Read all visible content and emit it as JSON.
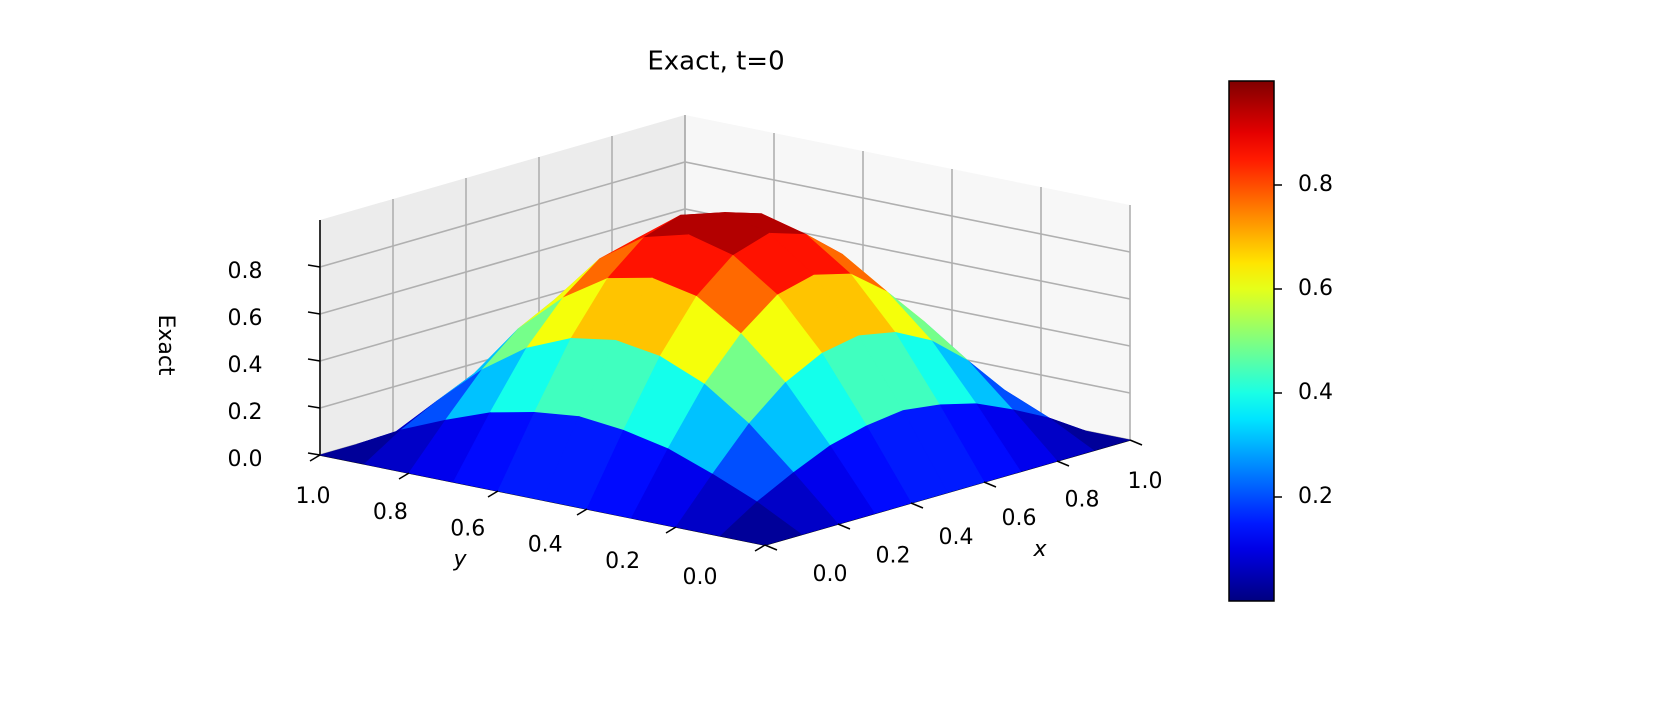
{
  "chart_data": {
    "type": "surface",
    "title": "Exact, t=0",
    "xlabel": "x",
    "ylabel": "y",
    "zlabel": "Exact",
    "colormap": "jet",
    "x": [
      0,
      0.1,
      0.2,
      0.3,
      0.4,
      0.5,
      0.6,
      0.7,
      0.8,
      0.9,
      1
    ],
    "y": [
      0,
      0.1,
      0.2,
      0.3,
      0.4,
      0.5,
      0.6,
      0.7,
      0.8,
      0.9,
      1
    ],
    "z": [
      [
        0,
        0,
        0,
        0,
        0,
        0,
        0,
        0,
        0,
        0,
        0
      ],
      [
        0,
        0.1,
        0.18,
        0.25,
        0.29,
        0.31,
        0.29,
        0.25,
        0.18,
        0.1,
        0
      ],
      [
        0,
        0.18,
        0.35,
        0.48,
        0.56,
        0.59,
        0.56,
        0.48,
        0.35,
        0.18,
        0
      ],
      [
        0,
        0.25,
        0.48,
        0.65,
        0.77,
        0.81,
        0.77,
        0.65,
        0.48,
        0.25,
        0
      ],
      [
        0,
        0.29,
        0.56,
        0.77,
        0.9,
        0.95,
        0.9,
        0.77,
        0.56,
        0.29,
        0
      ],
      [
        0,
        0.31,
        0.59,
        0.81,
        0.95,
        1,
        0.95,
        0.81,
        0.59,
        0.31,
        0
      ],
      [
        0,
        0.29,
        0.56,
        0.77,
        0.9,
        0.95,
        0.9,
        0.77,
        0.56,
        0.29,
        0
      ],
      [
        0,
        0.25,
        0.48,
        0.65,
        0.77,
        0.81,
        0.77,
        0.65,
        0.48,
        0.25,
        0
      ],
      [
        0,
        0.18,
        0.35,
        0.48,
        0.56,
        0.59,
        0.56,
        0.48,
        0.35,
        0.18,
        0
      ],
      [
        0,
        0.1,
        0.18,
        0.25,
        0.29,
        0.31,
        0.29,
        0.25,
        0.18,
        0.1,
        0
      ],
      [
        0,
        0,
        0,
        0,
        0,
        0,
        0,
        0,
        0,
        0,
        0
      ]
    ],
    "xlim": [
      0,
      1
    ],
    "ylim": [
      0,
      1
    ],
    "zlim": [
      0,
      1
    ],
    "xticks": [
      {
        "value": 0,
        "label": "0.0"
      },
      0.2,
      0.4,
      0.6,
      0.8,
      {
        "value": 1,
        "label": "1.0"
      }
    ],
    "yticks": [
      {
        "value": 0,
        "label": "0.0"
      },
      0.2,
      0.4,
      0.6,
      0.8,
      {
        "value": 1,
        "label": "1.0"
      }
    ],
    "zticks": [
      {
        "value": 0,
        "label": "0.0"
      },
      0.2,
      0.4,
      0.6,
      0.8
    ],
    "colorbar": {
      "clim": [
        0,
        1
      ],
      "ticks": [
        0.2,
        0.4,
        0.6,
        0.8
      ]
    },
    "grid": true
  }
}
